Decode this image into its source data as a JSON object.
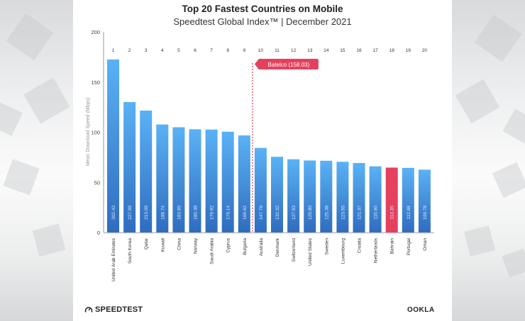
{
  "header": {
    "title": "Top 20 Fastest Countries on Mobile",
    "subtitle": "Speedtest Global Index™ | December 2021"
  },
  "footer": {
    "left_logo": "SPEEDTEST",
    "left_logo_icon": "gauge-icon",
    "right_logo": "OOKLA"
  },
  "colors": {
    "bar_top": "#5ab2f5",
    "bar_bottom": "#2f6cbf",
    "highlight": "#e5405e",
    "annotation": "#e5405e"
  },
  "chart_data": {
    "type": "bar",
    "title": "Top 20 Fastest Countries on Mobile",
    "subtitle": "Speedtest Global Index™ | December 2021",
    "xlabel": "",
    "ylabel": "Mean Download Speed (Mbps)",
    "ylim": [
      0,
      200
    ],
    "yticks": [
      0,
      50,
      100,
      150,
      200
    ],
    "grid": false,
    "ranks": [
      "1",
      "2",
      "3",
      "4",
      "5",
      "6",
      "7",
      "8",
      "9",
      "10",
      "11",
      "12",
      "13",
      "14",
      "15",
      "16",
      "17",
      "18",
      "19",
      "20"
    ],
    "categories": [
      "United Arab Emirates",
      "South Korea",
      "Qatar",
      "Kuwait",
      "China",
      "Norway",
      "Saudi Arabia",
      "Cyprus",
      "Bulgaria",
      "Australia",
      "Denmark",
      "Switzerland",
      "United States",
      "Sweden",
      "Luxembourg",
      "Croatia",
      "Netherlands",
      "Bahrain",
      "Portugal",
      "Oman"
    ],
    "values": [
      302.43,
      227.99,
      213.09,
      188.74,
      183.95,
      180.38,
      179.92,
      176.14,
      169.62,
      147.76,
      132.32,
      127.93,
      125.8,
      125.38,
      123.55,
      121.37,
      115.6,
      113.35,
      112.88,
      109.78
    ],
    "highlight_category": "Bahrain",
    "annotations": [
      {
        "text": "Batelco  (158.03)",
        "value": 158.03,
        "position": "between Bulgaria and Australia",
        "style": "dashed-vertical-line"
      }
    ]
  }
}
